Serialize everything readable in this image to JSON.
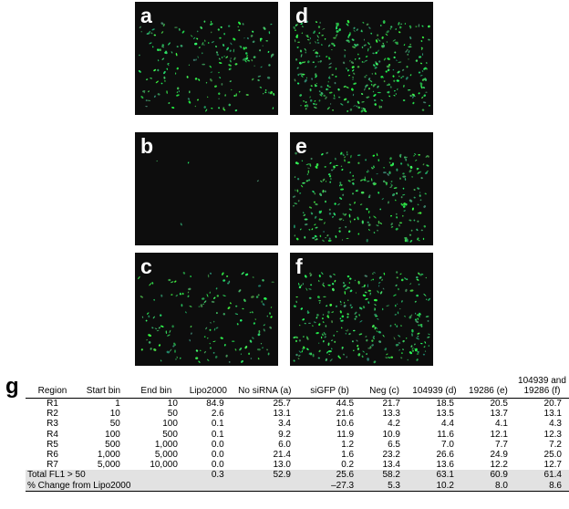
{
  "panels": [
    {
      "label": "a"
    },
    {
      "label": "b"
    },
    {
      "label": "c"
    },
    {
      "label": "d"
    },
    {
      "label": "e"
    },
    {
      "label": "f"
    }
  ],
  "table": {
    "label": "g",
    "header": [
      "Region",
      "Start bin",
      "End bin",
      "Lipo2000",
      "No siRNA (a)",
      "siGFP (b)",
      "Neg (c)",
      "104939 (d)",
      "19286 (e)",
      "104939 and 19286 (f)"
    ],
    "rows": [
      [
        "R1",
        "1",
        "10",
        "84.9",
        "25.7",
        "44.5",
        "21.7",
        "18.5",
        "20.5",
        "20.7"
      ],
      [
        "R2",
        "10",
        "50",
        "2.6",
        "13.1",
        "21.6",
        "13.3",
        "13.5",
        "13.7",
        "13.1"
      ],
      [
        "R3",
        "50",
        "100",
        "0.1",
        "3.4",
        "10.6",
        "4.2",
        "4.4",
        "4.1",
        "4.3"
      ],
      [
        "R4",
        "100",
        "500",
        "0.1",
        "9.2",
        "11.9",
        "10.9",
        "11.6",
        "12.1",
        "12.3"
      ],
      [
        "R5",
        "500",
        "1,000",
        "0.0",
        "6.0",
        "1.2",
        "6.5",
        "7.0",
        "7.7",
        "7.2"
      ],
      [
        "R6",
        "1,000",
        "5,000",
        "0.0",
        "21.4",
        "1.6",
        "23.2",
        "26.6",
        "24.9",
        "25.0"
      ],
      [
        "R7",
        "5,000",
        "10,000",
        "0.0",
        "13.0",
        "0.2",
        "13.4",
        "13.6",
        "12.2",
        "12.7"
      ]
    ],
    "total": {
      "label": "Total FL1 > 50",
      "values": [
        "0.3",
        "52.9",
        "25.6",
        "58.2",
        "63.1",
        "60.9",
        "61.4"
      ]
    },
    "change": {
      "label": "% Change from Lipo2000",
      "values": [
        "–27.3",
        "5.3",
        "10.2",
        "8.0",
        "8.6"
      ]
    }
  }
}
